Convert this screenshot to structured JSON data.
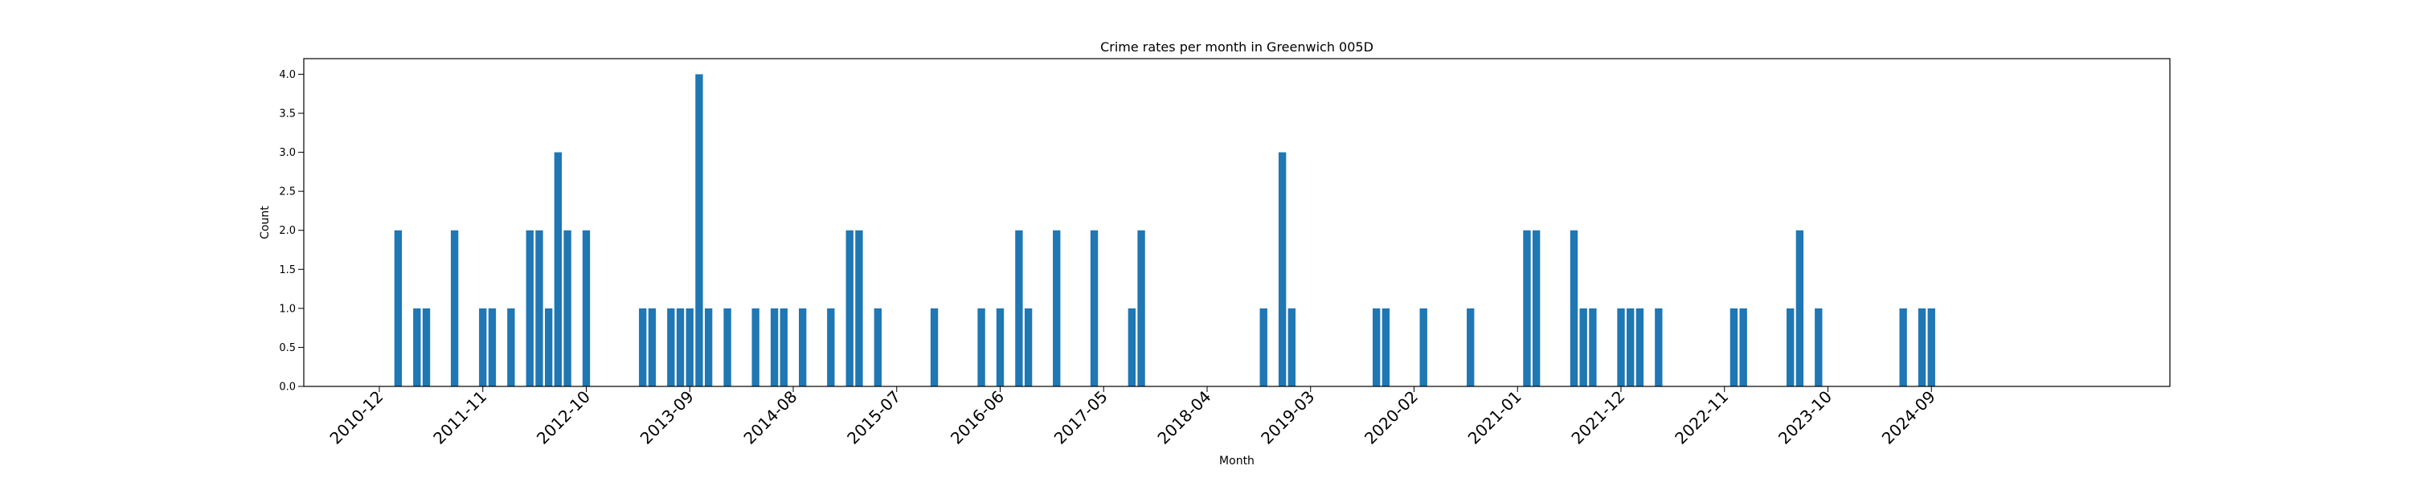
{
  "chart_data": {
    "type": "bar",
    "title": "Crime rates per month in Greenwich 005D",
    "xlabel": "Month",
    "ylabel": "Count",
    "ylim": [
      0,
      4.2
    ],
    "yticks": [
      0.0,
      0.5,
      1.0,
      1.5,
      2.0,
      2.5,
      3.0,
      3.5,
      4.0
    ],
    "ytick_labels": [
      "0.0",
      "0.5",
      "1.0",
      "1.5",
      "2.0",
      "2.5",
      "3.0",
      "3.5",
      "4.0"
    ],
    "xticks": [
      "2010-12",
      "2011-11",
      "2012-10",
      "2013-09",
      "2014-08",
      "2015-07",
      "2016-06",
      "2017-05",
      "2018-04",
      "2019-03",
      "2020-02",
      "2021-01",
      "2021-12",
      "2022-11",
      "2023-10",
      "2024-09"
    ],
    "x_start": "2010-12",
    "x_end": "2025-08",
    "bar_color": "#1f77b4",
    "grid": false,
    "months": [
      "2011-02",
      "2011-04",
      "2011-05",
      "2011-08",
      "2011-11",
      "2011-12",
      "2012-02",
      "2012-04",
      "2012-05",
      "2012-06",
      "2012-07",
      "2012-08",
      "2012-10",
      "2013-04",
      "2013-05",
      "2013-07",
      "2013-08",
      "2013-09",
      "2013-10",
      "2013-11",
      "2014-01",
      "2014-04",
      "2014-06",
      "2014-07",
      "2014-09",
      "2014-12",
      "2015-02",
      "2015-03",
      "2015-05",
      "2015-11",
      "2016-04",
      "2016-06",
      "2016-08",
      "2016-09",
      "2016-12",
      "2017-04",
      "2017-08",
      "2017-09",
      "2018-10",
      "2018-12",
      "2019-01",
      "2019-10",
      "2019-11",
      "2020-03",
      "2020-08",
      "2021-02",
      "2021-03",
      "2021-07",
      "2021-08",
      "2021-09",
      "2021-12",
      "2022-01",
      "2022-02",
      "2022-04",
      "2022-12",
      "2023-01",
      "2023-06",
      "2023-07",
      "2023-09",
      "2024-06",
      "2024-08",
      "2024-09"
    ],
    "values": [
      2,
      1,
      1,
      2,
      1,
      1,
      1,
      2,
      2,
      1,
      3,
      2,
      2,
      1,
      1,
      1,
      1,
      1,
      4,
      1,
      1,
      1,
      1,
      1,
      1,
      1,
      2,
      2,
      1,
      1,
      1,
      1,
      2,
      1,
      2,
      2,
      1,
      2,
      1,
      3,
      1,
      1,
      1,
      1,
      1,
      2,
      2,
      2,
      1,
      1,
      1,
      1,
      1,
      1,
      1,
      1,
      1,
      2,
      1,
      1,
      1,
      1
    ]
  }
}
